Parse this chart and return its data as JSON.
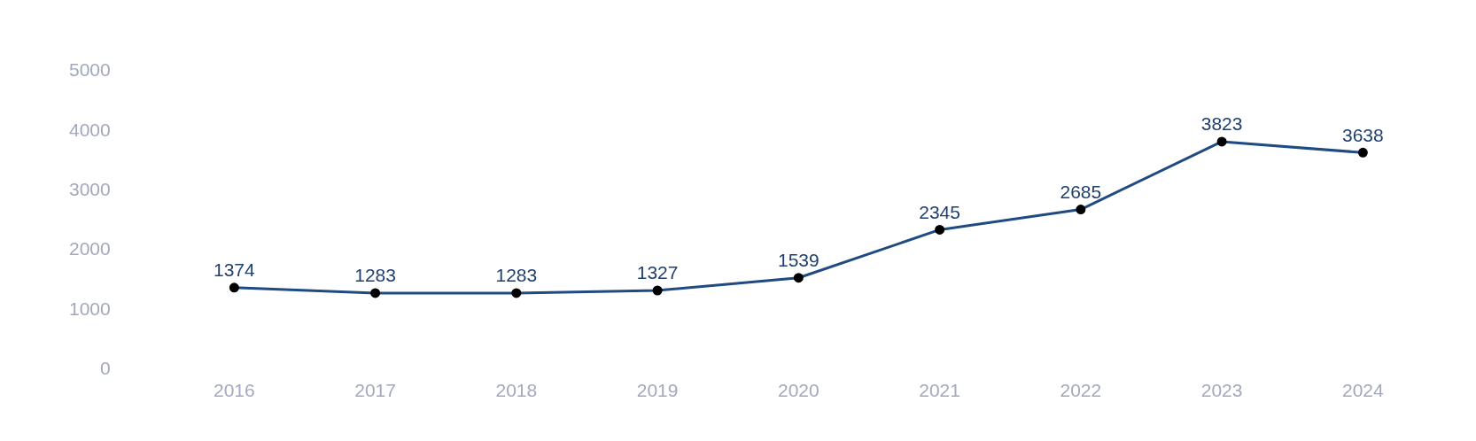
{
  "chart_data": {
    "type": "line",
    "categories": [
      "2016",
      "2017",
      "2018",
      "2019",
      "2020",
      "2021",
      "2022",
      "2023",
      "2024"
    ],
    "series": [
      {
        "color": "#1f4a82",
        "values": [
          1374,
          1283,
          1283,
          1327,
          1539,
          2345,
          2685,
          3823,
          3638
        ]
      }
    ],
    "ylim": [
      0,
      5000
    ],
    "yticks": [
      0,
      1000,
      2000,
      3000,
      4000,
      5000
    ],
    "grid": false,
    "legend": false,
    "marker": "circle",
    "line_style": "solid",
    "data_labels": true
  }
}
